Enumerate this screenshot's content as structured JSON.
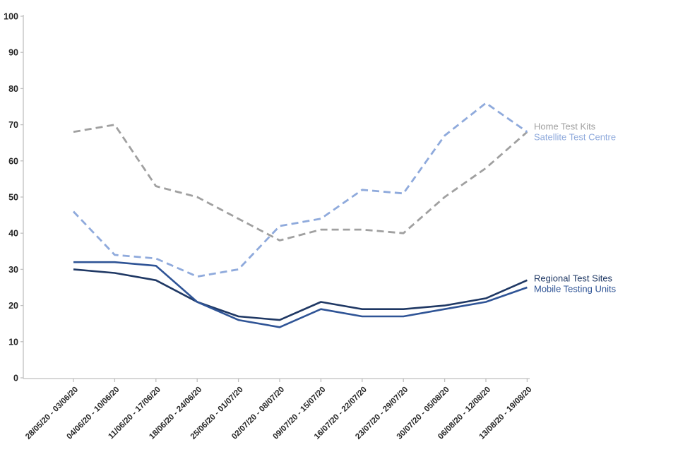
{
  "chart_data": {
    "type": "line",
    "title": "",
    "xlabel": "",
    "ylabel": "",
    "ylim": [
      0,
      100
    ],
    "y_ticks": [
      0,
      10,
      20,
      30,
      40,
      50,
      60,
      70,
      80,
      90,
      100
    ],
    "grid": false,
    "legend_position": "end-of-line-labels-right",
    "axis_color": "#bfbfbf",
    "tick_label_color": "#262626",
    "categories": [
      "28/05/20 - 03/06/20",
      "04/06/20 - 10/06/20",
      "11/06/20 - 17/06/20",
      "18/06/20 - 24/06/20",
      "25/06/20 - 01/07/20",
      "02/07/20 - 08/07/20",
      "09/07/20 - 15/07/20",
      "16/07/20 - 22/07/20",
      "23/07/20 - 29/07/20",
      "30/07/20 - 05/08/20",
      "06/08/20 - 12/08/20",
      "13/08/20 - 19/08/20"
    ],
    "series": [
      {
        "name": "Home Test Kits",
        "color": "#a0a0a0",
        "line_style": "dashed",
        "values": [
          68,
          70,
          53,
          50,
          44,
          38,
          41,
          41,
          40,
          50,
          58,
          68
        ]
      },
      {
        "name": "Satellite Test Centre",
        "color": "#8faadc",
        "line_style": "dashed",
        "values": [
          46,
          34,
          33,
          28,
          30,
          42,
          44,
          52,
          51,
          67,
          76,
          68
        ]
      },
      {
        "name": "Regional Test Sites",
        "color": "#1f3864",
        "line_style": "solid",
        "values": [
          30,
          29,
          27,
          21,
          17,
          16,
          21,
          19,
          19,
          20,
          22,
          27
        ]
      },
      {
        "name": "Mobile Testing Units",
        "color": "#2f5496",
        "line_style": "solid",
        "values": [
          32,
          32,
          31,
          21,
          16,
          14,
          19,
          17,
          17,
          19,
          21,
          25
        ]
      }
    ]
  }
}
